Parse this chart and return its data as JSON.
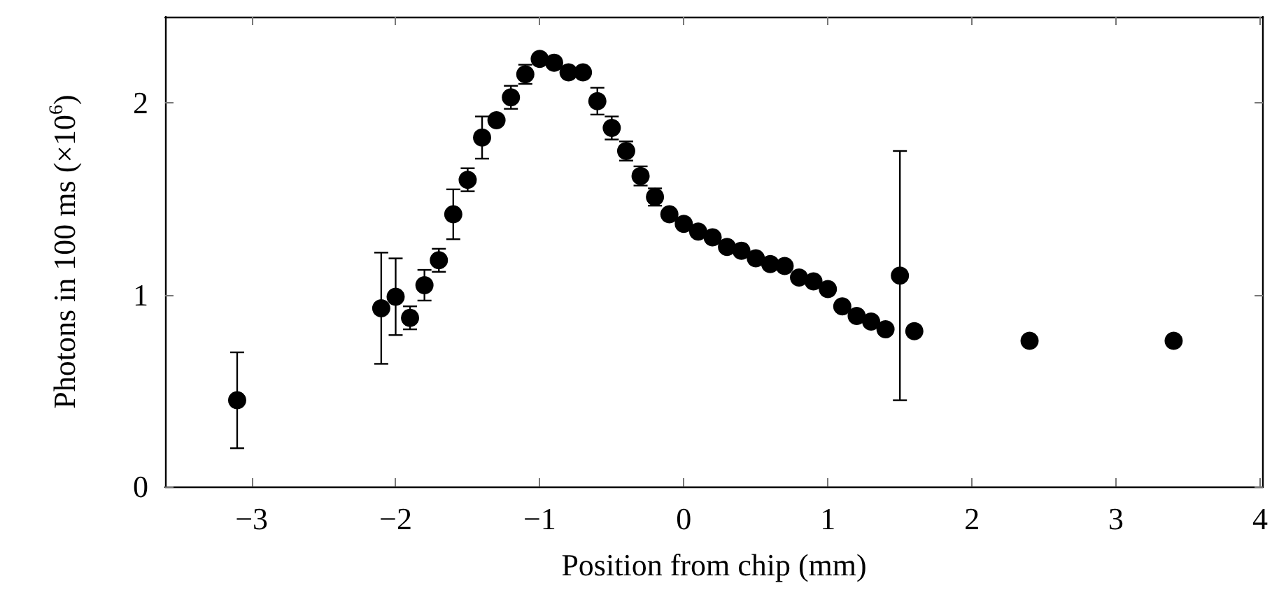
{
  "chart_data": {
    "type": "scatter",
    "xlabel": "Position from chip (mm)",
    "ylabel": "Photons in 100 ms (×10$^{6}$)",
    "x": [
      -3.1,
      -2.1,
      -2.0,
      -1.9,
      -1.8,
      -1.7,
      -1.6,
      -1.5,
      -1.4,
      -1.3,
      -1.2,
      -1.1,
      -1.0,
      -0.9,
      -0.8,
      -0.7,
      -0.6,
      -0.5,
      -0.4,
      -0.3,
      -0.2,
      -0.1,
      0.0,
      0.1,
      0.2,
      0.3,
      0.4,
      0.5,
      0.6,
      0.7,
      0.8,
      0.9,
      1.0,
      1.1,
      1.2,
      1.3,
      1.4,
      1.5,
      1.6,
      2.4,
      3.4
    ],
    "series": [
      {
        "color": "#000000",
        "values": [
          0.45,
          0.93,
          0.99,
          0.88,
          1.05,
          1.18,
          1.42,
          1.6,
          1.82,
          1.91,
          2.03,
          2.15,
          2.23,
          2.21,
          2.16,
          2.16,
          2.01,
          1.87,
          1.75,
          1.62,
          1.51,
          1.42,
          1.37,
          1.33,
          1.3,
          1.25,
          1.23,
          1.19,
          1.16,
          1.15,
          1.09,
          1.07,
          1.03,
          0.94,
          0.89,
          0.86,
          0.82,
          1.1,
          0.81,
          0.76,
          0.76
        ],
        "errors": [
          0.25,
          0.29,
          0.2,
          0.06,
          0.08,
          0.06,
          0.13,
          0.06,
          0.11,
          null,
          0.06,
          0.05,
          null,
          null,
          null,
          null,
          0.07,
          0.06,
          0.05,
          0.05,
          0.045,
          null,
          null,
          null,
          null,
          null,
          null,
          null,
          null,
          null,
          null,
          null,
          null,
          null,
          null,
          null,
          null,
          0.65,
          null,
          null,
          null
        ]
      }
    ],
    "xlim": [
      -3.6,
      4.02
    ],
    "xticks": [
      -3,
      -2,
      -1,
      0,
      1,
      2,
      3,
      4
    ],
    "ylim": [
      0,
      2.45
    ],
    "yticks": [
      0,
      1,
      2
    ],
    "marker": "circle"
  }
}
